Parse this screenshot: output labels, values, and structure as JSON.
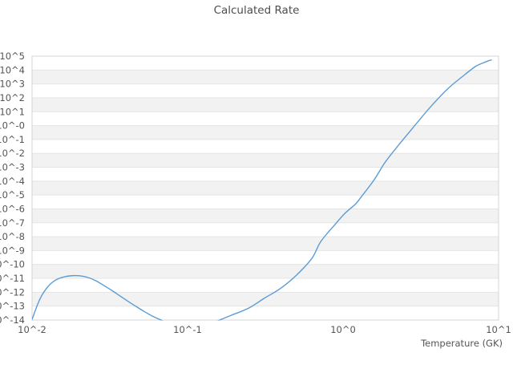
{
  "chart_data": {
    "type": "line",
    "title": "Calculated Rate",
    "xlabel": "Temperature (GK)",
    "ylabel": "",
    "x_scale": "log10",
    "y_scale": "log10",
    "x_range_log10": [
      -2,
      1
    ],
    "y_range_log10": [
      -14,
      5
    ],
    "x_tick_labels": [
      "10^-2",
      "10^-1",
      "10^0",
      "10^1"
    ],
    "x_tick_log10": [
      -2,
      -1,
      0,
      1
    ],
    "y_tick_labels": [
      "10^5",
      "10^4",
      "10^3",
      "10^2",
      "10^1",
      "10^-0",
      "10^-1",
      "10^-2",
      "10^-3",
      "10^-4",
      "10^-5",
      "10^-6",
      "10^-7",
      "10^-8",
      "10^-9",
      "10^-10",
      "10^-11",
      "10^-12",
      "10^-13",
      "10^-14"
    ],
    "grid": "horizontal-decade-bands",
    "legend": "none",
    "series": [
      {
        "name": "calculated-rate",
        "log10_T_GK": [
          -2.0,
          -1.95,
          -1.9,
          -1.85,
          -1.8,
          -1.745,
          -1.69,
          -1.64,
          -1.59,
          -1.54,
          -1.487,
          -1.434,
          -1.382,
          -1.33,
          -1.278,
          -1.226,
          -1.175,
          -1.12,
          -1.05,
          -0.98,
          -0.91,
          -0.85,
          -0.799,
          -0.711,
          -0.608,
          -0.505,
          -0.402,
          -0.3,
          -0.2,
          -0.144,
          -0.05,
          0.01,
          0.079,
          0.113,
          0.2,
          0.268,
          0.35,
          0.42,
          0.474,
          0.577,
          0.68,
          0.784,
          0.85,
          0.887,
          0.938,
          0.954
        ],
        "log10_rate": [
          -13.95,
          -12.5,
          -11.62,
          -11.13,
          -10.91,
          -10.81,
          -10.82,
          -10.94,
          -11.17,
          -11.5,
          -11.87,
          -12.27,
          -12.66,
          -13.03,
          -13.39,
          -13.72,
          -13.98,
          -14.2,
          -14.42,
          -14.5,
          -14.42,
          -14.24,
          -14.02,
          -13.62,
          -13.15,
          -12.42,
          -11.72,
          -10.77,
          -9.55,
          -8.36,
          -7.1,
          -6.34,
          -5.66,
          -5.19,
          -3.9,
          -2.68,
          -1.5,
          -0.55,
          0.18,
          1.53,
          2.72,
          3.68,
          4.25,
          4.45,
          4.68,
          4.72
        ]
      }
    ],
    "annotations": {
      "peak": {
        "T_GK": 0.018,
        "rate_log10": -10.8
      },
      "minimum_below_axis_T_range": [
        0.07,
        0.16
      ],
      "plateau": {
        "T_GK": 9,
        "rate_log10": 4.7
      }
    }
  },
  "colors": {
    "background": "#ffffff",
    "band": "#f2f2f2",
    "gridline": "#e4e4e4",
    "border": "#d4d4d4",
    "text": "#555555",
    "line": "#5b9bd5"
  }
}
